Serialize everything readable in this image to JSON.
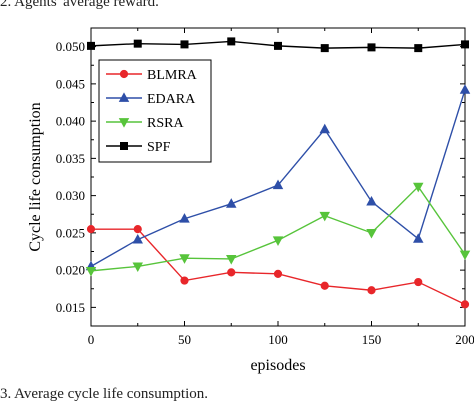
{
  "captions": {
    "top": "2. Agents' average reward.",
    "bottom": "3. Average cycle life consumption."
  },
  "chart_data": {
    "type": "line",
    "title": "",
    "xlabel": "episodes",
    "ylabel": "Cycle life consumption",
    "xlim": [
      0,
      200
    ],
    "ylim": [
      0.0125,
      0.0525
    ],
    "x_ticks": [
      0,
      50,
      100,
      150,
      200
    ],
    "x_tick_labels": [
      "0",
      "50",
      "100",
      "150",
      "200"
    ],
    "y_ticks": [
      0.015,
      0.02,
      0.025,
      0.03,
      0.035,
      0.04,
      0.045,
      0.05
    ],
    "y_tick_labels": [
      "0.015",
      "0.020",
      "0.025",
      "0.030",
      "0.035",
      "0.040",
      "0.045",
      "0.050"
    ],
    "grid": false,
    "legend_position": "top-left",
    "x": [
      0,
      25,
      50,
      75,
      100,
      125,
      150,
      175,
      200
    ],
    "series": [
      {
        "name": "BLMRA",
        "color": "#e8262a",
        "marker": "circle",
        "values": [
          0.0255,
          0.0255,
          0.0186,
          0.0197,
          0.0195,
          0.0179,
          0.0173,
          0.0184,
          0.0154
        ]
      },
      {
        "name": "EDARA",
        "color": "#2e4fa8",
        "marker": "triangle-up",
        "values": [
          0.0205,
          0.0241,
          0.0269,
          0.0289,
          0.0314,
          0.0389,
          0.0292,
          0.0242,
          0.0442
        ]
      },
      {
        "name": "RSRA",
        "color": "#57c43b",
        "marker": "triangle-down",
        "values": [
          0.0199,
          0.0205,
          0.0216,
          0.0215,
          0.024,
          0.0273,
          0.025,
          0.0312,
          0.0221
        ]
      },
      {
        "name": "SPF",
        "color": "#000000",
        "marker": "square",
        "values": [
          0.0501,
          0.0504,
          0.0503,
          0.0507,
          0.0501,
          0.0498,
          0.0499,
          0.0498,
          0.0503
        ]
      }
    ]
  }
}
